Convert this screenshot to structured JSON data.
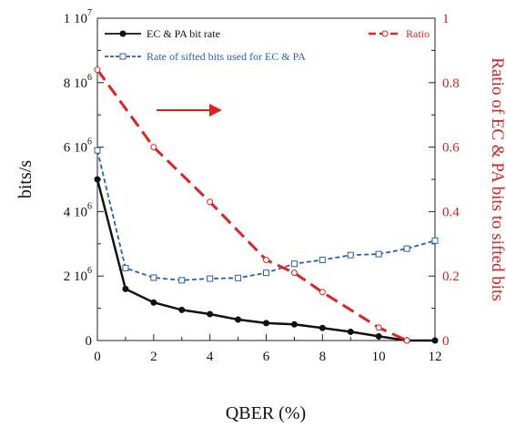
{
  "chart_data": {
    "type": "line",
    "xlabel": "QBER (%)",
    "ylabel_left": "bits/s",
    "ylabel_right": "Ratio of EC & PA bits to sifted bits",
    "xlim": [
      0,
      12
    ],
    "ylim_left": [
      0,
      10000000
    ],
    "ylim_right": [
      0,
      1
    ],
    "x_ticks": [
      "0",
      "2",
      "4",
      "6",
      "8",
      "10",
      "12"
    ],
    "y_left_ticks": [
      {
        "value": 0,
        "mantissa": "0",
        "exponent": ""
      },
      {
        "value": 2000000,
        "mantissa": "2 10",
        "exponent": "6"
      },
      {
        "value": 4000000,
        "mantissa": "4 10",
        "exponent": "6"
      },
      {
        "value": 6000000,
        "mantissa": "6 10",
        "exponent": "6"
      },
      {
        "value": 8000000,
        "mantissa": "8 10",
        "exponent": "6"
      },
      {
        "value": 10000000,
        "mantissa": "1 10",
        "exponent": "7"
      }
    ],
    "y_right_ticks": [
      "0",
      "0.2",
      "0.4",
      "0.6",
      "0.8",
      "1"
    ],
    "series": [
      {
        "name": "EC & PA bit rate",
        "axis": "left",
        "color": "#111111",
        "style": "solid",
        "marker": "filled-circle",
        "x": [
          0,
          1,
          2,
          3,
          4,
          5,
          6,
          7,
          8,
          9,
          10,
          11,
          12
        ],
        "y": [
          5000000,
          1600000,
          1180000,
          950000,
          820000,
          650000,
          540000,
          500000,
          390000,
          270000,
          130000,
          0,
          0
        ]
      },
      {
        "name": "Rate of sifted bits used for EC & PA",
        "axis": "left",
        "color": "#2a5db0",
        "style": "dashed",
        "marker": "open-square",
        "x": [
          0,
          1,
          2,
          3,
          4,
          5,
          6,
          7,
          8,
          9,
          10,
          11,
          12
        ],
        "y": [
          5900000,
          2250000,
          1950000,
          1870000,
          1920000,
          1940000,
          2100000,
          2380000,
          2500000,
          2650000,
          2680000,
          2850000,
          3100000
        ]
      },
      {
        "name": "Ratio",
        "axis": "right",
        "color": "#dd2222",
        "style": "dashed",
        "marker": "open-circle",
        "x": [
          0,
          2,
          4,
          6,
          7,
          8,
          10,
          11
        ],
        "y": [
          0.84,
          0.6,
          0.43,
          0.25,
          0.21,
          0.15,
          0.04,
          0
        ]
      }
    ],
    "legend": [
      {
        "label": "EC & PA bit rate",
        "position": "top-left"
      },
      {
        "label": "Rate of sifted bits used for EC & PA",
        "position": "top-left"
      },
      {
        "label": "Ratio",
        "position": "top-right"
      }
    ],
    "annotation": {
      "type": "arrow",
      "direction": "right",
      "color": "#dd2222",
      "meaning": "points to right axis"
    },
    "grid": false
  }
}
